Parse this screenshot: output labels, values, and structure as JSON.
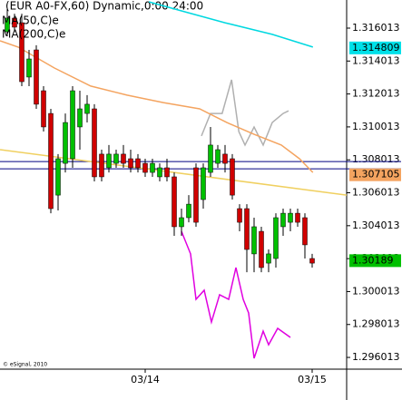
{
  "chart_data": {
    "type": "candlestick",
    "title": "(EUR A0-FX,60) Dynamic,0:00 24:00",
    "footer": "© eSignal, 2010",
    "categories": [
      null,
      null,
      null,
      null,
      null,
      null,
      null,
      null,
      null,
      null,
      null,
      null,
      null,
      null,
      null,
      null,
      null,
      null,
      null,
      "03/14",
      null,
      null,
      null,
      null,
      null,
      null,
      null,
      null,
      null,
      null,
      null,
      null,
      null,
      null,
      null,
      null,
      null,
      null,
      null,
      null,
      null,
      null,
      "03/15"
    ],
    "open": [
      1.31579,
      1.31662,
      1.31634,
      1.31304,
      1.31469,
      1.31221,
      1.31083,
      1.30587,
      1.3078,
      1.30808,
      1.31001,
      1.31083,
      1.31111,
      1.30836,
      1.30753,
      1.3078,
      1.30836,
      1.30808,
      1.30808,
      1.3078,
      1.30725,
      1.30698,
      1.30753,
      1.30698,
      1.30395,
      1.3045,
      1.30753,
      1.3056,
      1.30725,
      1.3078,
      1.30836,
      1.30808,
      1.30505,
      1.30505,
      1.3023,
      1.30367,
      1.30174,
      1.30202,
      1.30395,
      1.30422,
      1.30477,
      1.3045,
      1.30202
    ],
    "high": [
      1.31717,
      1.31689,
      1.31689,
      1.31469,
      1.31497,
      1.31249,
      1.31111,
      1.30836,
      1.31083,
      1.31249,
      1.31221,
      1.31194,
      1.31139,
      1.30863,
      1.30891,
      1.30863,
      1.30891,
      1.30863,
      1.30836,
      1.30808,
      1.30808,
      1.3078,
      1.30808,
      1.30725,
      1.30505,
      1.30587,
      1.3078,
      1.3078,
      1.31001,
      1.30891,
      1.30891,
      1.30836,
      1.30532,
      1.30532,
      1.3045,
      1.30395,
      1.30257,
      1.30477,
      1.30505,
      1.30505,
      1.30505,
      1.30477,
      1.3023
    ],
    "low": [
      1.31552,
      1.31579,
      1.31249,
      1.31249,
      1.31111,
      1.30973,
      1.30477,
      1.30494,
      1.30725,
      1.30753,
      1.30863,
      1.31028,
      1.3067,
      1.3067,
      1.30725,
      1.30753,
      1.30753,
      1.30725,
      1.30725,
      1.30698,
      1.30698,
      1.3067,
      1.3067,
      1.3034,
      1.3034,
      1.30422,
      1.30395,
      1.30505,
      1.30698,
      1.30753,
      1.30725,
      1.3056,
      1.30367,
      1.30119,
      1.30119,
      1.30119,
      1.30119,
      1.30147,
      1.3034,
      1.30367,
      1.30395,
      1.30202,
      1.30147
    ],
    "close": [
      1.31662,
      1.31607,
      1.31276,
      1.31414,
      1.31139,
      1.31001,
      1.30505,
      1.30808,
      1.31028,
      1.31221,
      1.31111,
      1.31139,
      1.30698,
      1.30698,
      1.30836,
      1.30836,
      1.3078,
      1.30753,
      1.30753,
      1.30725,
      1.3078,
      1.30753,
      1.30698,
      1.30395,
      1.3045,
      1.30532,
      1.30422,
      1.30753,
      1.30891,
      1.30863,
      1.3078,
      1.30587,
      1.30422,
      1.30257,
      1.30395,
      1.30147,
      1.3023,
      1.3045,
      1.30477,
      1.30477,
      1.30422,
      1.30285,
      1.30174
    ],
    "up_color": "#00c000",
    "down_color": "#d00000",
    "series": [
      {
        "name": "MA(50,C)e",
        "color": "#f4a460",
        "x": [
          -1,
          1.5,
          6.5,
          11.5,
          16.5,
          21.5,
          26.5,
          30.25,
          34,
          37.75,
          40.25,
          42.1
        ],
        "values": [
          1.31524,
          1.31486,
          1.31359,
          1.31249,
          1.31194,
          1.31149,
          1.31111,
          1.31028,
          1.30956,
          1.30891,
          1.30808,
          1.30725
        ]
      },
      {
        "name": "MA(200,C)e",
        "color": "#00d8e0",
        "x": [
          19.5,
          24,
          30,
          36.5,
          42.1
        ],
        "values": [
          1.31761,
          1.31706,
          1.31634,
          1.31563,
          1.31486
        ]
      }
    ],
    "lines": [
      {
        "color": "#f0d060",
        "x": [
          -1,
          46.75
        ],
        "values": [
          1.30863,
          1.30587
        ]
      },
      {
        "color": "#b0b0b0",
        "x": [
          26.75,
          28,
          29.6,
          30.9,
          31.9,
          32.75,
          34,
          35.25,
          36.5,
          38,
          38.75
        ],
        "values": [
          1.30946,
          1.31083,
          1.31083,
          1.31287,
          1.30973,
          1.30891,
          1.31001,
          1.30891,
          1.31028,
          1.31083,
          1.31099
        ]
      },
      {
        "color": "#e000e0",
        "x": [
          24,
          25.25,
          26,
          27.125,
          28.125,
          29.25,
          30.5,
          31.5,
          32.5,
          33.25,
          34,
          35.25,
          36,
          37.25,
          39
        ],
        "values": [
          1.30367,
          1.3023,
          1.29954,
          1.30009,
          1.29816,
          1.29982,
          1.29954,
          1.30147,
          1.29954,
          1.29871,
          1.29596,
          1.29761,
          1.29678,
          1.29778,
          1.29723
        ]
      }
    ],
    "hlines": [
      {
        "value": 1.30791,
        "color": "#000080"
      },
      {
        "value": 1.30747,
        "color": "#000080"
      }
    ],
    "price_tags": [
      {
        "value": 1.314809,
        "color": "#00e0e8"
      },
      {
        "value": 1.307105,
        "color": "#f4a460"
      },
      {
        "value": 1.30189,
        "color": "#00c000"
      }
    ],
    "xlim": [
      -1,
      46.75
    ],
    "ylim": [
      1.2953,
      1.31772
    ],
    "yticks": [
      1.316013,
      1.314013,
      1.312013,
      1.310013,
      1.308013,
      1.306013,
      1.304013,
      1.302013,
      1.300013,
      1.298013,
      1.296013
    ]
  }
}
